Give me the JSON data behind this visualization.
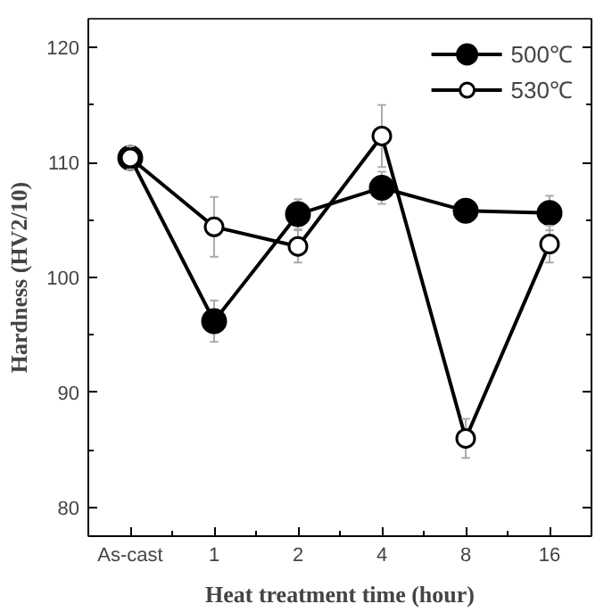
{
  "chart_data": {
    "type": "line",
    "xlabel": "Heat treatment time (hour)",
    "ylabel": "Hardness (HV2/10)",
    "categories": [
      "As-cast",
      "1",
      "2",
      "4",
      "8",
      "16"
    ],
    "series": [
      {
        "name": "500℃",
        "color": "#000000",
        "marker": "circle",
        "values": [
          110.4,
          96.2,
          105.5,
          107.8,
          105.8,
          105.6
        ],
        "errors": [
          1.0,
          1.8,
          1.3,
          1.4,
          0.8,
          1.5
        ]
      },
      {
        "name": "530℃",
        "color": "#000000",
        "marker": "open_circle",
        "values": [
          110.4,
          104.4,
          102.7,
          112.3,
          86.0,
          102.9
        ],
        "errors": [
          1.0,
          2.6,
          1.4,
          2.7,
          1.7,
          1.6
        ]
      }
    ],
    "ylim": [
      77.5,
      122.5
    ],
    "yticks": [
      80,
      90,
      100,
      110,
      120
    ],
    "grid": false,
    "legend": "top right"
  }
}
